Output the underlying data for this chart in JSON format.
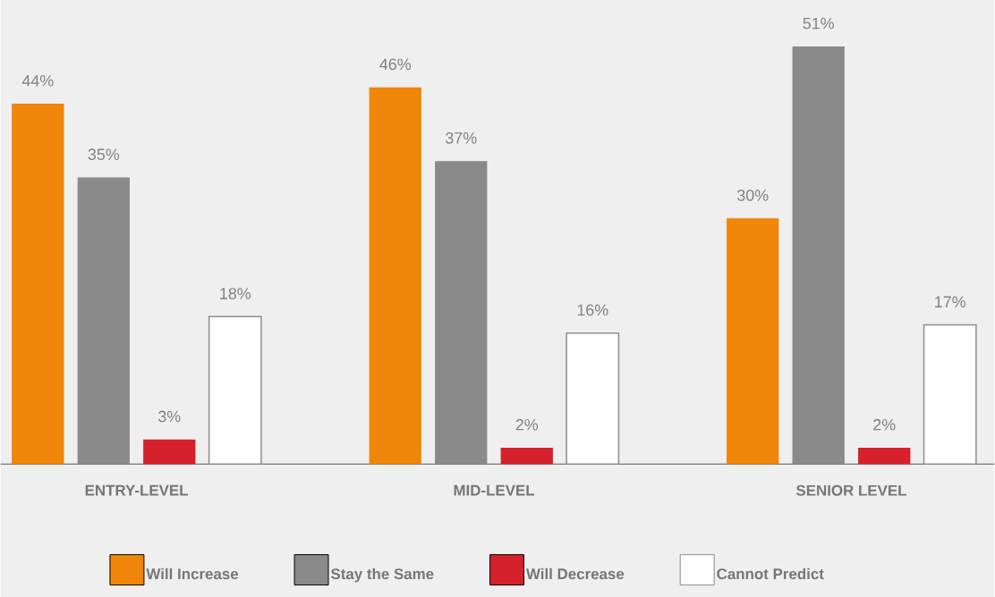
{
  "chart_data": {
    "type": "bar",
    "categories": [
      "ENTRY-LEVEL",
      "MID-LEVEL",
      "SENIOR LEVEL"
    ],
    "series": [
      {
        "name": "Will Increase",
        "color": "#f0860a",
        "values": [
          44,
          46,
          30
        ],
        "value_labels": [
          "44%",
          "46%",
          "30%"
        ]
      },
      {
        "name": "Stay the Same",
        "color": "#8a8a8a",
        "values": [
          35,
          37,
          51
        ],
        "value_labels": [
          "35%",
          "37%",
          "51%"
        ]
      },
      {
        "name": "Will Decrease",
        "color": "#d6202b",
        "values": [
          3,
          2,
          2
        ],
        "value_labels": [
          "3%",
          "2%",
          "2%"
        ]
      },
      {
        "name": "Cannot Predict",
        "color": "#ffffff",
        "values": [
          18,
          16,
          17
        ],
        "value_labels": [
          "18%",
          "16%",
          "17%"
        ]
      }
    ],
    "legend": "bottom"
  }
}
